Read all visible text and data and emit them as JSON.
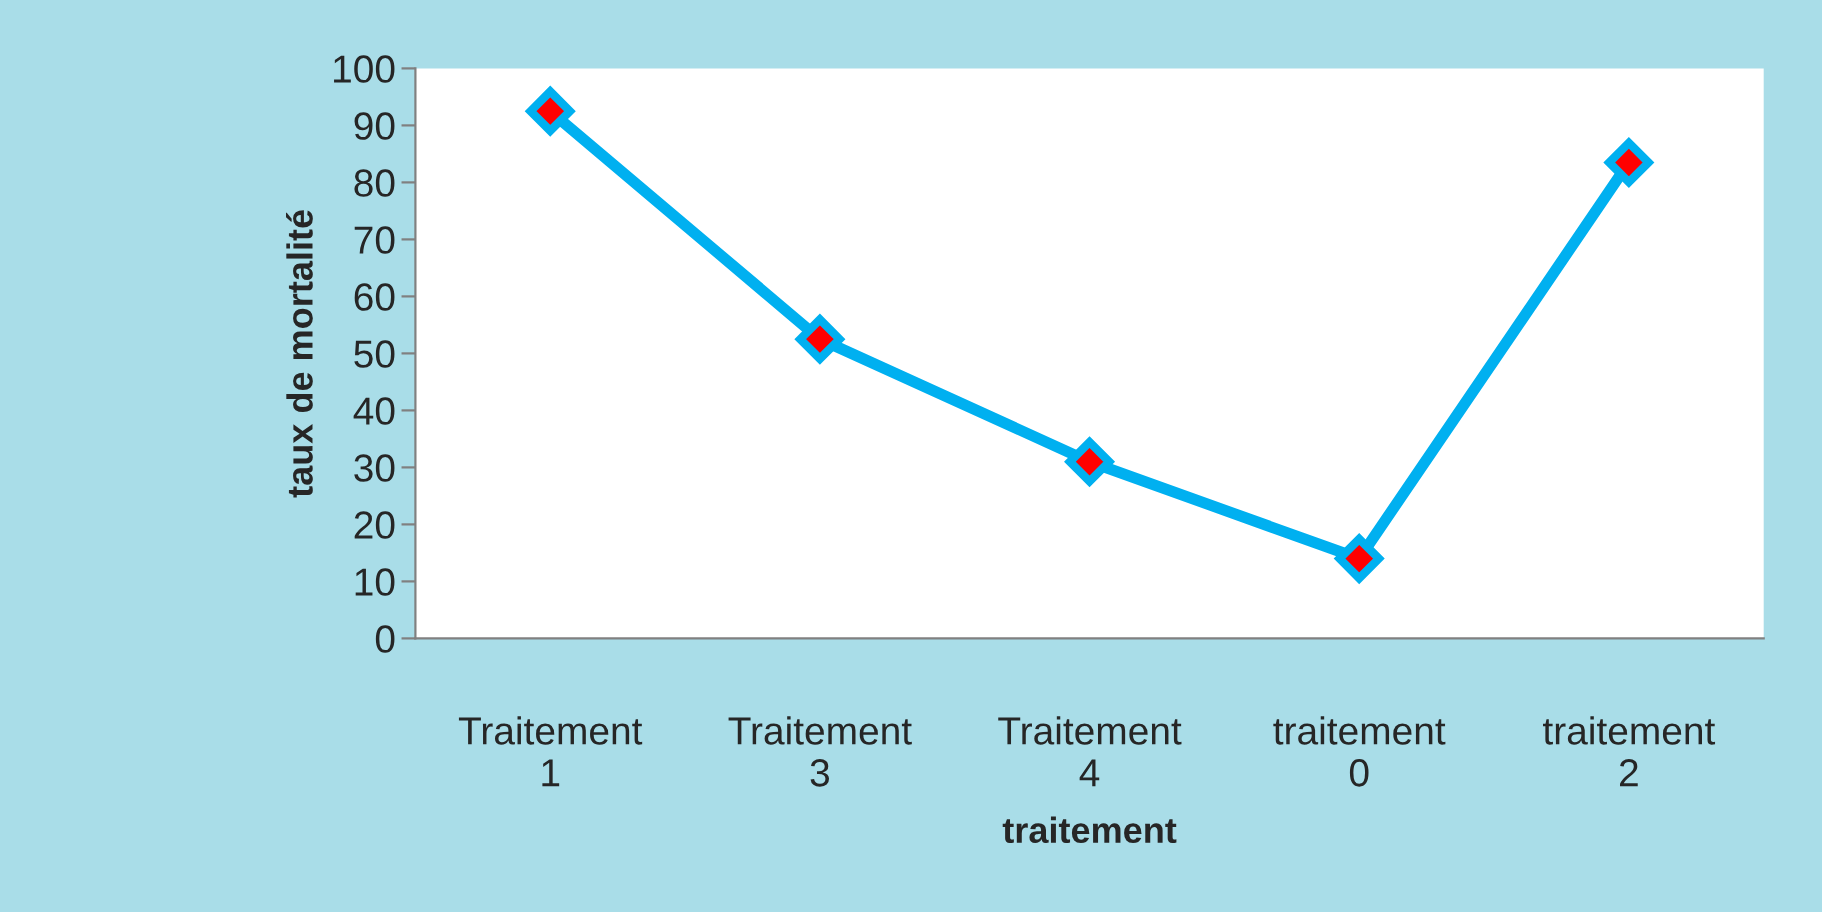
{
  "chart_data": {
    "type": "line",
    "xlabel": "traitement",
    "ylabel": "taux de mortalité",
    "categories": [
      "Traitement\n1",
      "Traitement\n3",
      "Traitement\n4",
      "traitement\n0",
      "traitement\n2"
    ],
    "series": [
      {
        "color": "#00b0f0",
        "values": [
          92.5,
          52.5,
          31,
          14,
          83.5
        ]
      }
    ],
    "ylim": [
      0,
      100
    ],
    "yticks": [
      0,
      10,
      20,
      30,
      40,
      50,
      60,
      70,
      80,
      90,
      100
    ],
    "marker": "diamond",
    "line_style": "solid",
    "grid": false,
    "legend": false
  }
}
